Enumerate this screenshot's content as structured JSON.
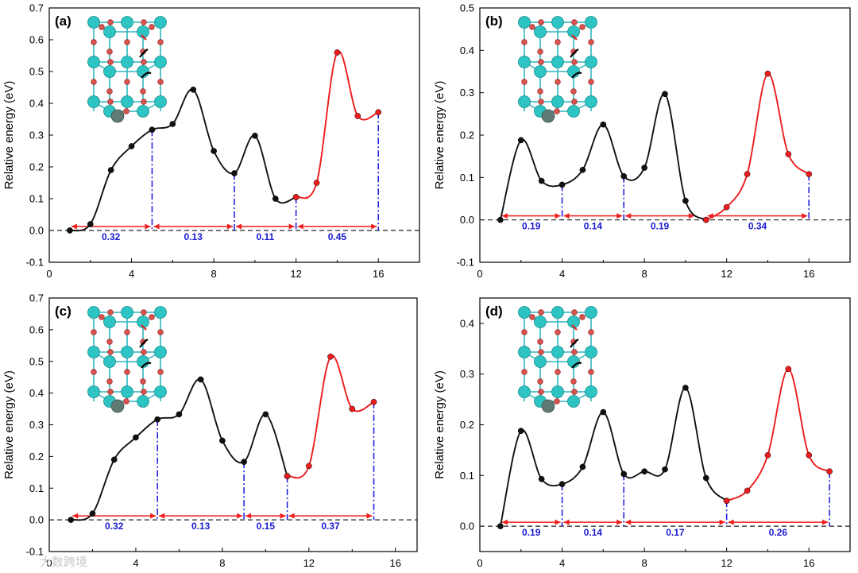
{
  "figure": {
    "watermark": "大数跨境",
    "colors": {
      "black_curve": "#111111",
      "red_curve": "#ee1c1c",
      "guide": "#2222dd",
      "arrow": "#ee1c1c",
      "baseline": "#222222",
      "segment_text": "#1a1ad0",
      "atom_large": "#2ec4c4",
      "atom_small": "#d9534f",
      "atom_dopant": "#5f7a74",
      "bond": "#2fb5c0"
    }
  },
  "chart_data": [
    {
      "type": "line",
      "label": "(a)",
      "xlabel": "",
      "ylabel": "Relative energy (eV)",
      "xlim": [
        0,
        18
      ],
      "ylim": [
        -0.1,
        0.7
      ],
      "xticks": [
        0,
        4,
        8,
        12,
        16
      ],
      "yticks": [
        -0.1,
        0.0,
        0.1,
        0.2,
        0.3,
        0.4,
        0.5,
        0.6,
        0.7
      ],
      "ytick_labels": [
        "-0.1",
        "0.0",
        "0.1",
        "0.2",
        "0.3",
        "0.4",
        "0.5",
        "0.6",
        "0.7"
      ],
      "series": [
        {
          "name": "black",
          "color": "black",
          "x": [
            1,
            2,
            3,
            4,
            5,
            6,
            7,
            8,
            9,
            10,
            11,
            12
          ],
          "y": [
            0.0,
            0.02,
            0.19,
            0.265,
            0.317,
            0.335,
            0.443,
            0.25,
            0.18,
            0.298,
            0.1,
            0.105
          ]
        },
        {
          "name": "red",
          "color": "red",
          "x": [
            12,
            13,
            14,
            15,
            16
          ],
          "y": [
            0.105,
            0.15,
            0.56,
            0.36,
            0.372
          ]
        }
      ],
      "guides": [
        {
          "x": 5,
          "y": 0.317
        },
        {
          "x": 9,
          "y": 0.18
        },
        {
          "x": 12,
          "y": 0.105
        },
        {
          "x": 16,
          "y": 0.372
        }
      ],
      "segments": [
        {
          "from": 1,
          "to": 5,
          "label": "0.32"
        },
        {
          "from": 5,
          "to": 9,
          "label": "0.13"
        },
        {
          "from": 9,
          "to": 12,
          "label": "0.11"
        },
        {
          "from": 12,
          "to": 16,
          "label": "0.45"
        }
      ]
    },
    {
      "type": "line",
      "label": "(b)",
      "xlabel": "",
      "ylabel": "Relative energy (eV)",
      "xlim": [
        0,
        18
      ],
      "ylim": [
        -0.1,
        0.5
      ],
      "xticks": [
        0,
        4,
        8,
        12,
        16
      ],
      "yticks": [
        -0.1,
        0.0,
        0.1,
        0.2,
        0.3,
        0.4,
        0.5
      ],
      "ytick_labels": [
        "-0.1",
        "0.0",
        "0.1",
        "0.2",
        "0.3",
        "0.4",
        "0.5"
      ],
      "series": [
        {
          "name": "black",
          "color": "black",
          "x": [
            1,
            2,
            3,
            4,
            5,
            6,
            7,
            8,
            9,
            10,
            11
          ],
          "y": [
            0.0,
            0.188,
            0.092,
            0.083,
            0.118,
            0.225,
            0.103,
            0.123,
            0.297,
            0.045,
            0.0
          ]
        },
        {
          "name": "red",
          "color": "red",
          "x": [
            11,
            12,
            13,
            14,
            15,
            16
          ],
          "y": [
            0.0,
            0.03,
            0.108,
            0.345,
            0.155,
            0.108
          ]
        }
      ],
      "guides": [
        {
          "x": 4,
          "y": 0.083
        },
        {
          "x": 7,
          "y": 0.103
        },
        {
          "x": 16,
          "y": 0.108
        }
      ],
      "segments": [
        {
          "from": 1,
          "to": 4,
          "label": "0.19"
        },
        {
          "from": 4,
          "to": 7,
          "label": "0.14"
        },
        {
          "from": 7,
          "to": 10.5,
          "label": "0.19"
        },
        {
          "from": 11,
          "to": 16,
          "label": "0.34"
        }
      ]
    },
    {
      "type": "line",
      "label": "(c)",
      "xlabel": "",
      "ylabel": "Relative energy (eV)",
      "xlim": [
        0,
        17
      ],
      "ylim": [
        -0.1,
        0.7
      ],
      "xticks": [
        0,
        4,
        8,
        12,
        16
      ],
      "yticks": [
        -0.1,
        0.0,
        0.1,
        0.2,
        0.3,
        0.4,
        0.5,
        0.6,
        0.7
      ],
      "ytick_labels": [
        "-0.1",
        "0.0",
        "0.1",
        "0.2",
        "0.3",
        "0.4",
        "0.5",
        "0.6",
        "0.7"
      ],
      "series": [
        {
          "name": "black",
          "color": "black",
          "x": [
            1,
            2,
            3,
            4,
            5,
            6,
            7,
            8,
            9,
            10,
            11
          ],
          "y": [
            0.0,
            0.02,
            0.19,
            0.26,
            0.317,
            0.333,
            0.443,
            0.25,
            0.183,
            0.333,
            0.138
          ]
        },
        {
          "name": "red",
          "color": "red",
          "x": [
            11,
            12,
            13,
            14,
            15
          ],
          "y": [
            0.138,
            0.17,
            0.515,
            0.35,
            0.372
          ]
        }
      ],
      "guides": [
        {
          "x": 5,
          "y": 0.317
        },
        {
          "x": 9,
          "y": 0.183
        },
        {
          "x": 11,
          "y": 0.138
        },
        {
          "x": 15,
          "y": 0.372
        }
      ],
      "segments": [
        {
          "from": 1,
          "to": 5,
          "label": "0.32"
        },
        {
          "from": 5,
          "to": 9,
          "label": "0.13"
        },
        {
          "from": 9,
          "to": 11,
          "label": "0.15"
        },
        {
          "from": 11,
          "to": 15,
          "label": "0.37"
        }
      ]
    },
    {
      "type": "line",
      "label": "(d)",
      "xlabel": "",
      "ylabel": "Relative energy (eV)",
      "xlim": [
        0,
        18
      ],
      "ylim": [
        -0.05,
        0.45
      ],
      "xticks": [
        0,
        4,
        8,
        12,
        16
      ],
      "yticks": [
        0.0,
        0.1,
        0.2,
        0.3,
        0.4
      ],
      "ytick_labels": [
        "0.0",
        "0.1",
        "0.2",
        "0.3",
        "0.4"
      ],
      "series": [
        {
          "name": "black",
          "color": "black",
          "x": [
            1,
            2,
            3,
            4,
            5,
            6,
            7,
            8,
            9,
            10,
            11,
            12
          ],
          "y": [
            0.0,
            0.188,
            0.093,
            0.083,
            0.117,
            0.225,
            0.103,
            0.108,
            0.112,
            0.273,
            0.095,
            0.05
          ]
        },
        {
          "name": "red",
          "color": "red",
          "x": [
            12,
            13,
            14,
            15,
            16,
            17
          ],
          "y": [
            0.05,
            0.07,
            0.14,
            0.31,
            0.14,
            0.108
          ]
        }
      ],
      "guides": [
        {
          "x": 4,
          "y": 0.083
        },
        {
          "x": 7,
          "y": 0.103
        },
        {
          "x": 12,
          "y": 0.05
        },
        {
          "x": 17,
          "y": 0.108
        }
      ],
      "segments": [
        {
          "from": 1,
          "to": 4,
          "label": "0.19"
        },
        {
          "from": 4,
          "to": 7,
          "label": "0.14"
        },
        {
          "from": 7,
          "to": 12,
          "label": "0.17"
        },
        {
          "from": 12,
          "to": 17,
          "label": "0.26"
        }
      ]
    }
  ]
}
